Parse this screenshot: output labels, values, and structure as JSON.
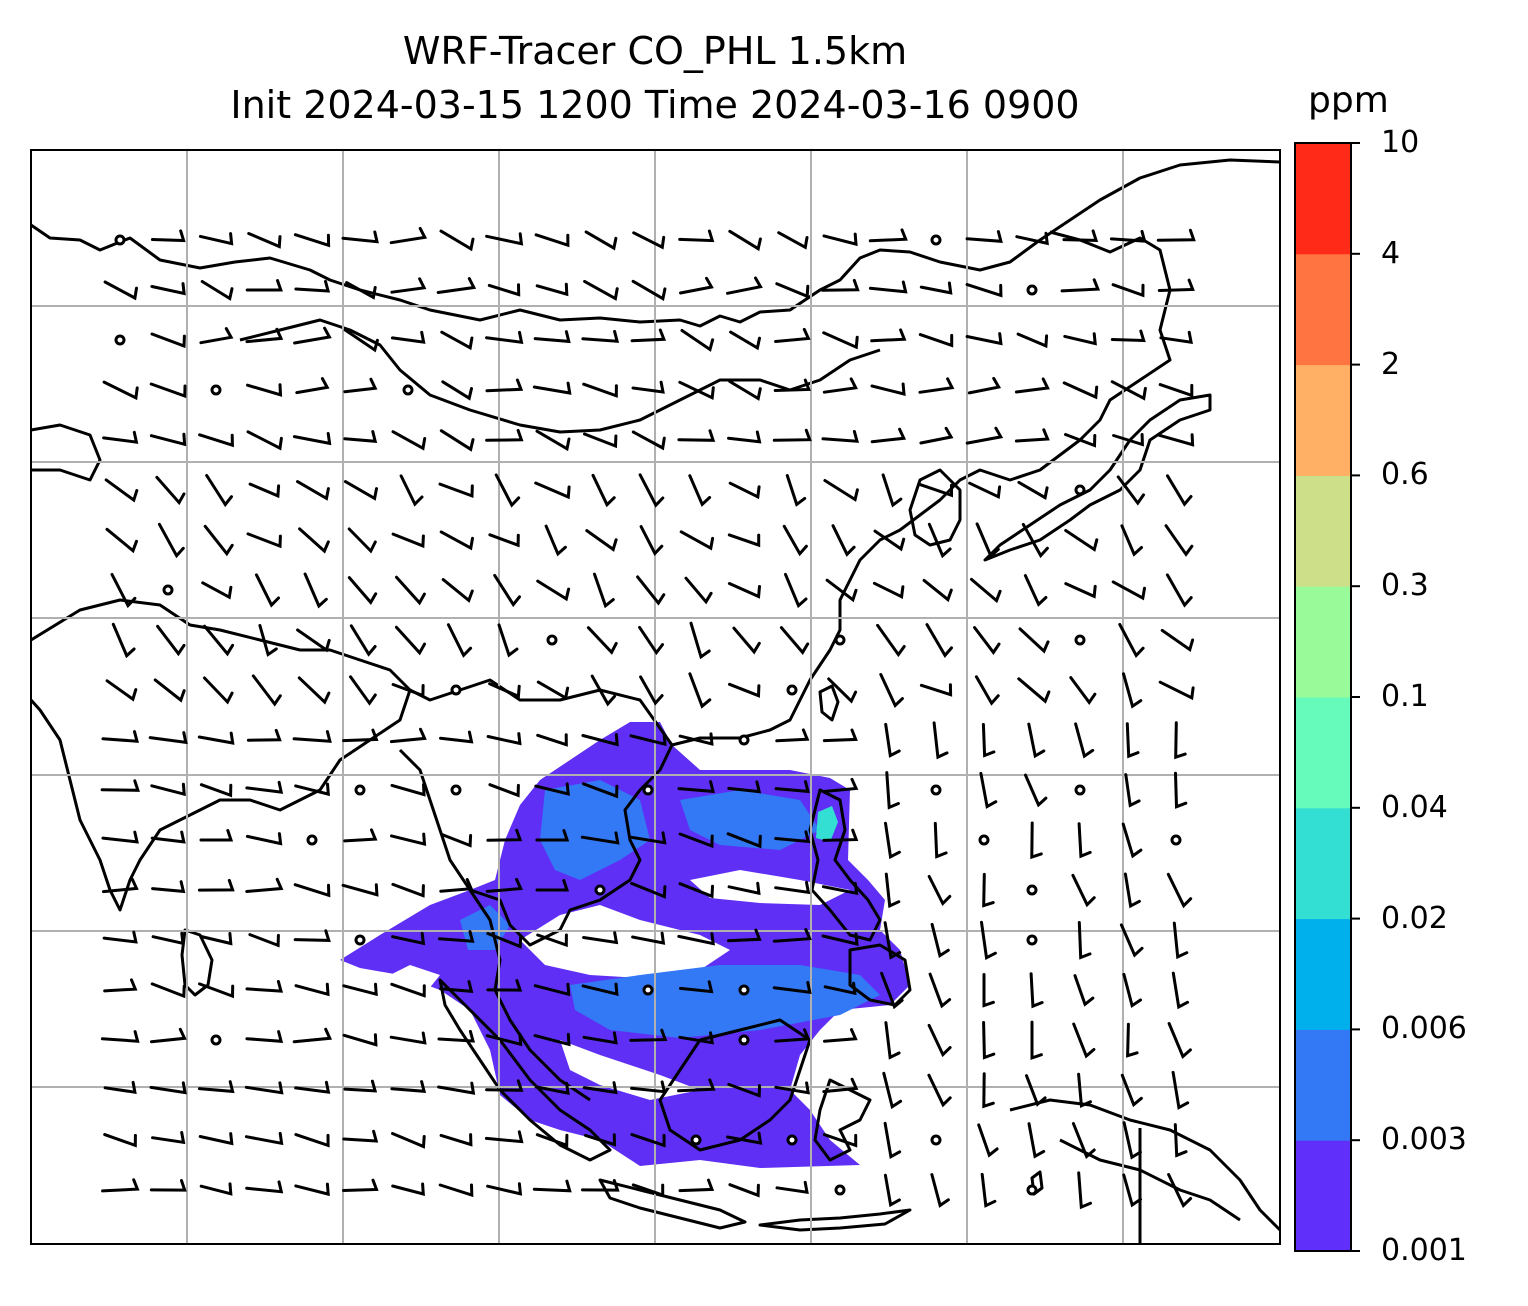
{
  "title": {
    "line1": "WRF-Tracer CO_PHL 1.5km",
    "line2": "Init 2024-03-15 1200 Time 2024-03-16 0900"
  },
  "colorbar": {
    "unit": "ppm",
    "ticks": [
      "0.001",
      "0.003",
      "0.006",
      "0.02",
      "0.04",
      "0.1",
      "0.3",
      "0.6",
      "2",
      "4",
      "10"
    ],
    "colors": [
      "#6030fa",
      "#3378f5",
      "#00b0ed",
      "#33dfd3",
      "#66fbbb",
      "#99fa99",
      "#cde089",
      "#ffb064",
      "#ff7440",
      "#ff2b18"
    ]
  },
  "map": {
    "gridlines": true,
    "tracer_fill_color": "#5f2ff5",
    "tracer_mid_color": "#3378f5",
    "tracer_peak_color": "#33dfd3",
    "coastline_color": "#000000",
    "wind_barb_color": "#000000"
  }
}
